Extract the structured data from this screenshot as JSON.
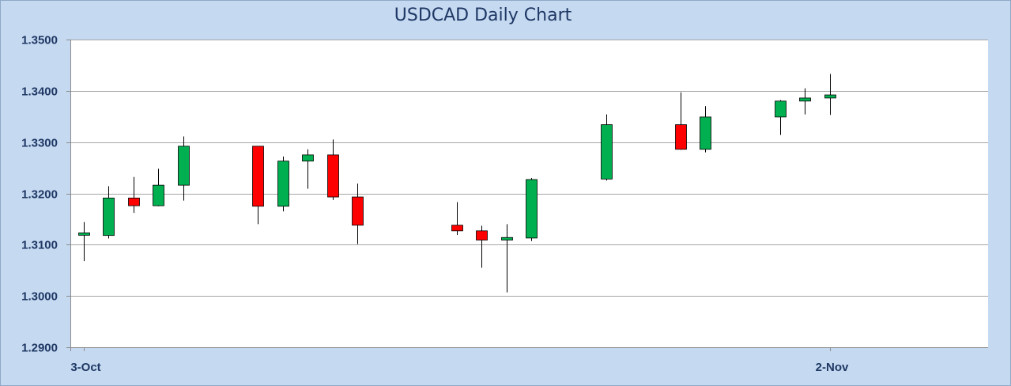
{
  "chart_data": {
    "type": "candlestick",
    "title": "USDCAD Daily Chart",
    "xlabel": "",
    "ylabel": "",
    "ylim": [
      1.29,
      1.35
    ],
    "yticks": [
      "1.2900",
      "1.3000",
      "1.3100",
      "1.3200",
      "1.3300",
      "1.3400",
      "1.3500"
    ],
    "x_range": [
      "3-Oct",
      "5-Nov"
    ],
    "xticks": [
      "3-Oct",
      "2-Nov"
    ],
    "grid": "horizontal",
    "colors": {
      "up": "#00b050",
      "down": "#ff0000",
      "wick": "#000000",
      "grid": "#a6a6a6",
      "text": "#1f3864"
    },
    "candles": [
      {
        "date": "3-Oct",
        "open": 1.312,
        "high": 1.3144,
        "low": 1.3068,
        "close": 1.3123
      },
      {
        "date": "4-Oct",
        "open": 1.3118,
        "high": 1.3214,
        "low": 1.3112,
        "close": 1.3191
      },
      {
        "date": "5-Oct",
        "open": 1.3191,
        "high": 1.3232,
        "low": 1.3162,
        "close": 1.3176
      },
      {
        "date": "6-Oct",
        "open": 1.3176,
        "high": 1.3248,
        "low": 1.3175,
        "close": 1.3216
      },
      {
        "date": "7-Oct",
        "open": 1.3216,
        "high": 1.3311,
        "low": 1.3186,
        "close": 1.3292
      },
      {
        "date": "10-Oct",
        "open": 1.3292,
        "high": 1.3292,
        "low": 1.314,
        "close": 1.3175
      },
      {
        "date": "11-Oct",
        "open": 1.3175,
        "high": 1.3272,
        "low": 1.3165,
        "close": 1.3263
      },
      {
        "date": "12-Oct",
        "open": 1.3263,
        "high": 1.3286,
        "low": 1.3209,
        "close": 1.3275
      },
      {
        "date": "13-Oct",
        "open": 1.3275,
        "high": 1.3305,
        "low": 1.3187,
        "close": 1.3193
      },
      {
        "date": "14-Oct",
        "open": 1.3193,
        "high": 1.3219,
        "low": 1.3101,
        "close": 1.3138
      },
      {
        "date": "18-Oct",
        "open": 1.3138,
        "high": 1.3183,
        "low": 1.3119,
        "close": 1.3127
      },
      {
        "date": "19-Oct",
        "open": 1.3127,
        "high": 1.3137,
        "low": 1.3055,
        "close": 1.3109
      },
      {
        "date": "20-Oct",
        "open": 1.3109,
        "high": 1.314,
        "low": 1.3007,
        "close": 1.3114
      },
      {
        "date": "21-Oct",
        "open": 1.3113,
        "high": 1.323,
        "low": 1.3107,
        "close": 1.3227
      },
      {
        "date": "24-Oct",
        "open": 1.3228,
        "high": 1.3354,
        "low": 1.3225,
        "close": 1.3334
      },
      {
        "date": "27-Oct",
        "open": 1.3334,
        "high": 1.3397,
        "low": 1.3285,
        "close": 1.3286
      },
      {
        "date": "28-Oct",
        "open": 1.3286,
        "high": 1.337,
        "low": 1.328,
        "close": 1.3349
      },
      {
        "date": "31-Oct",
        "open": 1.3349,
        "high": 1.3382,
        "low": 1.3314,
        "close": 1.338
      },
      {
        "date": "1-Nov",
        "open": 1.338,
        "high": 1.3405,
        "low": 1.3354,
        "close": 1.3386
      },
      {
        "date": "2-Nov",
        "open": 1.3386,
        "high": 1.3433,
        "low": 1.3353,
        "close": 1.3392
      }
    ]
  }
}
